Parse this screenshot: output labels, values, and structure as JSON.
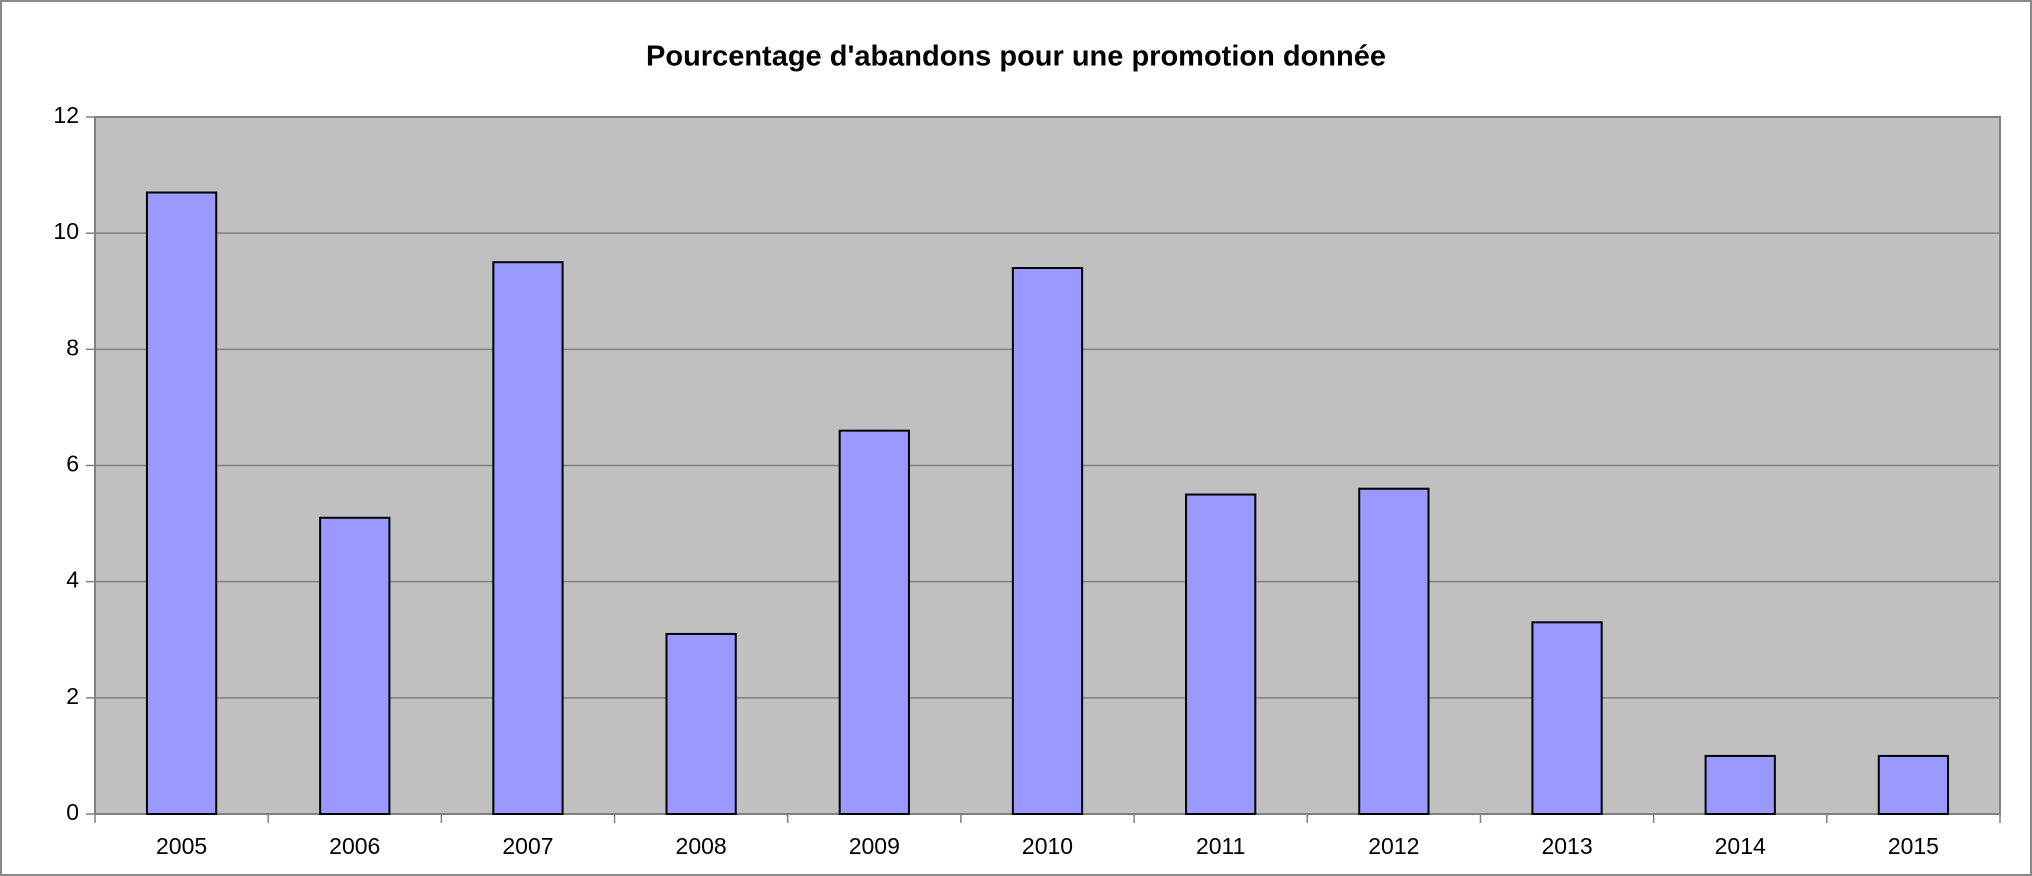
{
  "chart_data": {
    "type": "bar",
    "title": "Pourcentage d'abandons pour une promotion donnée",
    "categories": [
      "2005",
      "2006",
      "2007",
      "2008",
      "2009",
      "2010",
      "2011",
      "2012",
      "2013",
      "2014",
      "2015"
    ],
    "values": [
      10.7,
      5.1,
      9.5,
      3.1,
      6.6,
      9.4,
      5.5,
      5.6,
      3.3,
      1,
      1
    ],
    "color": "#9999ff",
    "ylim": [
      0,
      12
    ],
    "yticks": [
      0,
      2,
      4,
      6,
      8,
      10,
      12
    ],
    "grid": true
  }
}
